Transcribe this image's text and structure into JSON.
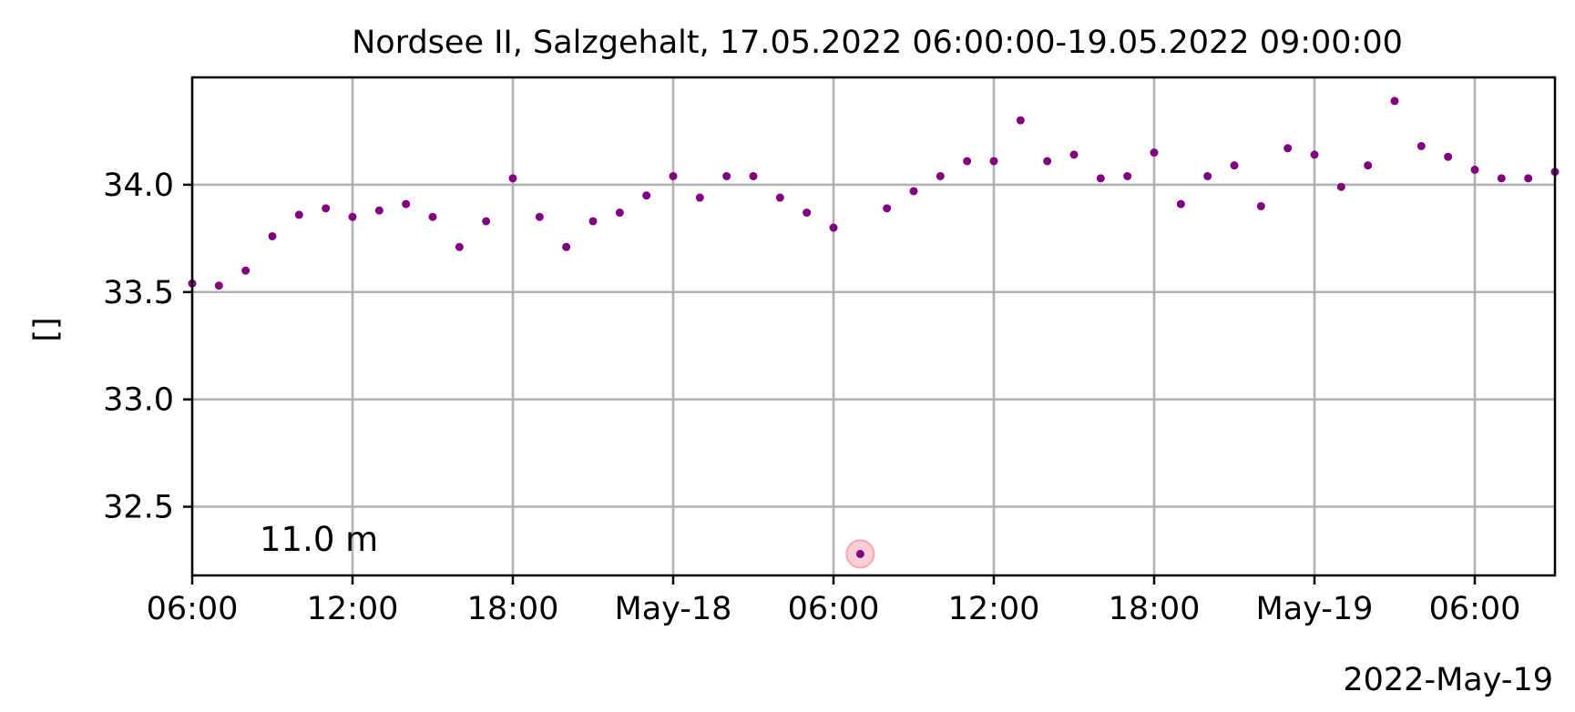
{
  "chart_data": {
    "type": "scatter",
    "title": "Nordsee II, Salzgehalt, 17.05.2022 06:00:00-19.05.2022 09:00:00",
    "xlabel": "",
    "ylabel": "[]",
    "x_offset_label": "2022-May-19",
    "annotation": "11.0 m",
    "xlim": [
      "2022-05-17 06:00",
      "2022-05-19 09:00"
    ],
    "ylim": [
      32.18,
      34.5
    ],
    "yticks": [
      32.5,
      33.0,
      33.5,
      34.0
    ],
    "ytick_labels": [
      "32.5",
      "33.0",
      "33.5",
      "34.0"
    ],
    "xticks": [
      "2022-05-17 06:00",
      "2022-05-17 12:00",
      "2022-05-17 18:00",
      "2022-05-18 00:00",
      "2022-05-18 06:00",
      "2022-05-18 12:00",
      "2022-05-18 18:00",
      "2022-05-19 00:00",
      "2022-05-19 06:00"
    ],
    "xtick_labels": [
      "06:00",
      "12:00",
      "18:00",
      "May-18",
      "06:00",
      "12:00",
      "18:00",
      "May-19",
      "06:00"
    ],
    "grid": true,
    "point_color": "#800080",
    "highlight_color": "#f4a6b4",
    "series": [
      {
        "x": [
          "2022-05-17 06:00",
          "2022-05-17 07:00",
          "2022-05-17 08:00",
          "2022-05-17 09:00",
          "2022-05-17 10:00",
          "2022-05-17 11:00",
          "2022-05-17 12:00",
          "2022-05-17 13:00",
          "2022-05-17 14:00",
          "2022-05-17 15:00",
          "2022-05-17 16:00",
          "2022-05-17 17:00",
          "2022-05-17 18:00",
          "2022-05-17 19:00",
          "2022-05-17 20:00",
          "2022-05-17 21:00",
          "2022-05-17 22:00",
          "2022-05-17 23:00",
          "2022-05-18 00:00",
          "2022-05-18 01:00",
          "2022-05-18 02:00",
          "2022-05-18 03:00",
          "2022-05-18 04:00",
          "2022-05-18 05:00",
          "2022-05-18 06:00",
          "2022-05-18 07:00",
          "2022-05-18 08:00",
          "2022-05-18 09:00",
          "2022-05-18 10:00",
          "2022-05-18 11:00",
          "2022-05-18 12:00",
          "2022-05-18 13:00",
          "2022-05-18 14:00",
          "2022-05-18 15:00",
          "2022-05-18 16:00",
          "2022-05-18 17:00",
          "2022-05-18 18:00",
          "2022-05-18 19:00",
          "2022-05-18 20:00",
          "2022-05-18 21:00",
          "2022-05-18 22:00",
          "2022-05-18 23:00",
          "2022-05-19 00:00",
          "2022-05-19 01:00",
          "2022-05-19 02:00",
          "2022-05-19 03:00",
          "2022-05-19 04:00",
          "2022-05-19 05:00",
          "2022-05-19 06:00",
          "2022-05-19 07:00",
          "2022-05-19 08:00",
          "2022-05-19 09:00"
        ],
        "y": [
          33.54,
          33.53,
          33.6,
          33.76,
          33.86,
          33.89,
          33.85,
          33.88,
          33.91,
          33.85,
          33.71,
          33.83,
          34.03,
          33.85,
          33.71,
          33.83,
          33.87,
          33.95,
          34.04,
          33.94,
          34.04,
          34.04,
          33.94,
          33.87,
          33.8,
          32.28,
          33.89,
          33.97,
          34.04,
          34.11,
          34.11,
          34.3,
          34.11,
          34.14,
          34.03,
          34.04,
          34.15,
          33.91,
          34.04,
          34.09,
          33.9,
          34.17,
          34.14,
          33.99,
          34.09,
          34.39,
          34.18,
          34.13,
          34.07,
          34.03,
          34.03,
          34.06
        ]
      }
    ],
    "highlighted_points": [
      {
        "x": "2022-05-18 07:00",
        "y": 32.28
      }
    ]
  }
}
